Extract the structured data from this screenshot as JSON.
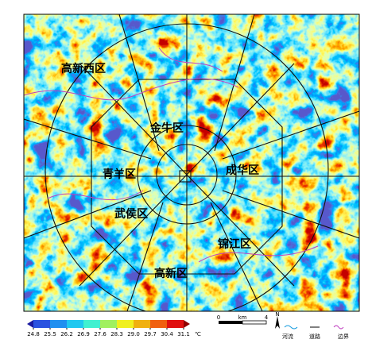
{
  "map": {
    "districts": [
      {
        "label": "高新西区"
      },
      {
        "label": "金牛区"
      },
      {
        "label": "青羊区"
      },
      {
        "label": "成华区"
      },
      {
        "label": "武侯区"
      },
      {
        "label": "锦江区"
      },
      {
        "label": "高新区"
      }
    ],
    "colorbar": {
      "ticks": [
        24.8,
        25.5,
        26.2,
        26.9,
        27.6,
        28.3,
        {
          "value": 29,
          "label": "29.0"
        },
        29.7,
        30.4,
        31.1
      ],
      "unit": "℃",
      "colors": [
        "#1a1aa0",
        "#2a52e0",
        "#1f8ff0",
        "#20c8f0",
        "#40f0d0",
        "#a0f060",
        "#f0f020",
        "#f0b010",
        "#f06010",
        "#e01010",
        "#900000"
      ]
    },
    "scale_bar": {
      "labels": [
        "0",
        "km",
        "4"
      ]
    },
    "north": "N",
    "legend": [
      "河流",
      "道路",
      "边界"
    ]
  }
}
